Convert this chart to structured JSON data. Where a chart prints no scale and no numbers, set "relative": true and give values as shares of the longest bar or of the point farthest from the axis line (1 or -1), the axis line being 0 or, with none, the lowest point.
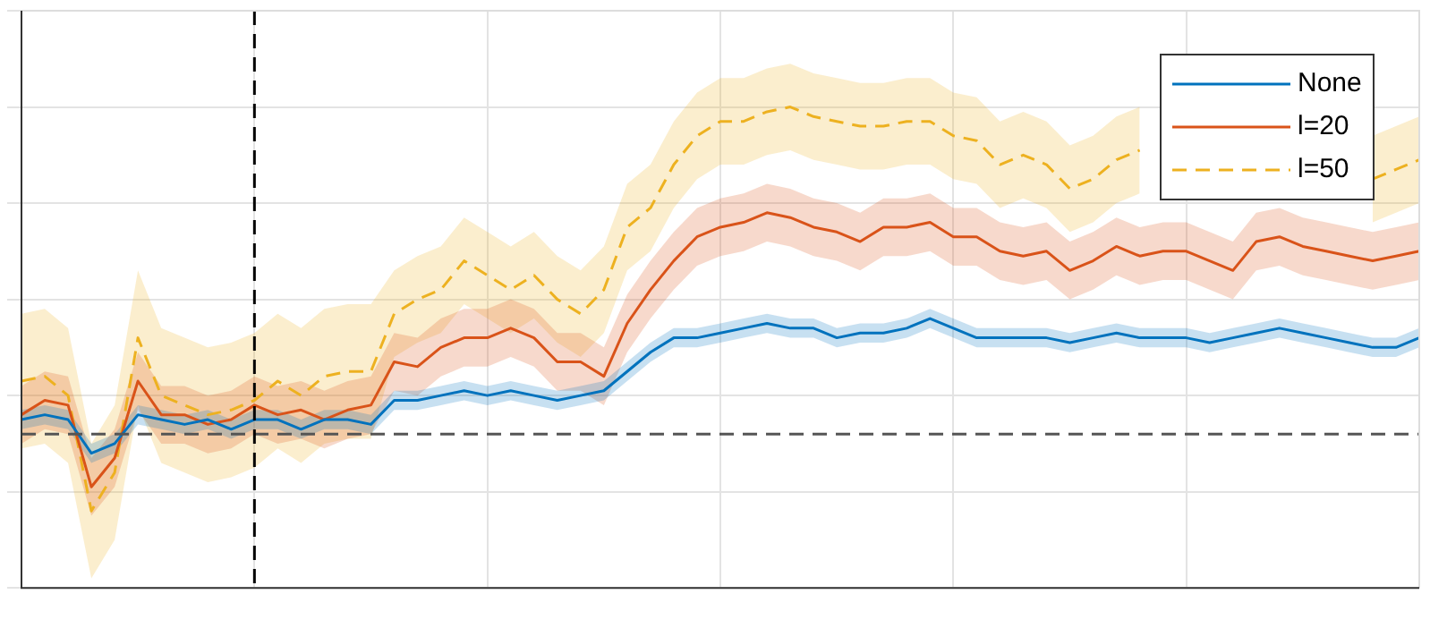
{
  "chart_data": {
    "type": "line",
    "relative": true,
    "grid": true,
    "legend": "top right",
    "marker": "none",
    "categories": [
      null,
      null,
      null,
      null,
      null,
      null,
      null,
      null,
      null,
      null,
      null,
      null,
      null,
      null,
      null,
      null,
      null,
      null,
      null,
      null,
      null,
      null,
      null,
      null,
      null,
      null,
      null,
      null,
      null,
      null,
      null,
      null,
      null,
      null,
      null,
      null,
      null,
      null,
      null,
      null,
      null,
      null,
      null,
      null,
      null,
      null,
      null,
      null,
      null,
      null,
      null,
      null,
      null,
      null,
      null,
      null,
      null,
      null,
      null,
      null,
      null
    ],
    "series": [
      {
        "name": "None",
        "color": "#0072bd",
        "line_style": "solid",
        "values": [
          0.35,
          0.36,
          0.35,
          0.28,
          0.3,
          0.36,
          0.35,
          0.34,
          0.35,
          0.33,
          0.35,
          0.35,
          0.33,
          0.35,
          0.35,
          0.34,
          0.39,
          0.39,
          0.4,
          0.41,
          0.4,
          0.41,
          0.4,
          0.39,
          0.4,
          0.41,
          0.45,
          0.49,
          0.52,
          0.52,
          0.53,
          0.54,
          0.55,
          0.54,
          0.54,
          0.52,
          0.53,
          0.53,
          0.54,
          0.56,
          0.54,
          0.52,
          0.52,
          0.52,
          0.52,
          0.51,
          0.52,
          0.53,
          0.52,
          0.52,
          0.52,
          0.51,
          0.52,
          0.53,
          0.54,
          0.53,
          0.52,
          0.51,
          0.5,
          0.5,
          0.52
        ],
        "lower": [
          0.33,
          0.34,
          0.33,
          0.26,
          0.28,
          0.34,
          0.33,
          0.32,
          0.33,
          0.31,
          0.33,
          0.33,
          0.31,
          0.33,
          0.33,
          0.32,
          0.37,
          0.37,
          0.38,
          0.39,
          0.38,
          0.39,
          0.38,
          0.37,
          0.38,
          0.39,
          0.43,
          0.47,
          0.5,
          0.5,
          0.51,
          0.52,
          0.53,
          0.52,
          0.52,
          0.5,
          0.51,
          0.51,
          0.52,
          0.54,
          0.52,
          0.5,
          0.5,
          0.5,
          0.5,
          0.49,
          0.5,
          0.51,
          0.5,
          0.5,
          0.5,
          0.49,
          0.5,
          0.51,
          0.52,
          0.51,
          0.5,
          0.49,
          0.48,
          0.48,
          0.5
        ],
        "upper": [
          0.37,
          0.38,
          0.37,
          0.3,
          0.32,
          0.38,
          0.37,
          0.36,
          0.37,
          0.35,
          0.37,
          0.37,
          0.35,
          0.37,
          0.37,
          0.36,
          0.41,
          0.41,
          0.42,
          0.43,
          0.42,
          0.43,
          0.42,
          0.41,
          0.42,
          0.43,
          0.47,
          0.51,
          0.54,
          0.54,
          0.55,
          0.56,
          0.57,
          0.56,
          0.56,
          0.54,
          0.55,
          0.55,
          0.56,
          0.58,
          0.56,
          0.54,
          0.54,
          0.54,
          0.54,
          0.53,
          0.54,
          0.55,
          0.54,
          0.54,
          0.54,
          0.53,
          0.54,
          0.55,
          0.56,
          0.55,
          0.54,
          0.53,
          0.52,
          0.52,
          0.54
        ]
      },
      {
        "name": "l=20",
        "color": "#d95319",
        "line_style": "solid",
        "values": [
          0.36,
          0.39,
          0.38,
          0.21,
          0.27,
          0.43,
          0.36,
          0.36,
          0.34,
          0.35,
          0.38,
          0.36,
          0.37,
          0.35,
          0.37,
          0.38,
          0.47,
          0.46,
          0.5,
          0.52,
          0.52,
          0.54,
          0.52,
          0.47,
          0.47,
          0.44,
          0.55,
          0.62,
          0.68,
          0.73,
          0.75,
          0.76,
          0.78,
          0.77,
          0.75,
          0.74,
          0.72,
          0.75,
          0.75,
          0.76,
          0.73,
          0.73,
          0.7,
          0.69,
          0.7,
          0.66,
          0.68,
          0.71,
          0.69,
          0.7,
          0.7,
          0.68,
          0.66,
          0.72,
          0.73,
          0.71,
          0.7,
          0.69,
          0.68,
          0.69,
          0.7
        ],
        "lower": [
          0.3,
          0.33,
          0.32,
          0.15,
          0.21,
          0.37,
          0.3,
          0.3,
          0.28,
          0.29,
          0.32,
          0.3,
          0.31,
          0.29,
          0.31,
          0.32,
          0.41,
          0.4,
          0.44,
          0.46,
          0.46,
          0.48,
          0.46,
          0.41,
          0.41,
          0.38,
          0.49,
          0.56,
          0.62,
          0.67,
          0.69,
          0.7,
          0.72,
          0.71,
          0.69,
          0.68,
          0.66,
          0.69,
          0.69,
          0.7,
          0.67,
          0.67,
          0.64,
          0.63,
          0.64,
          0.6,
          0.62,
          0.65,
          0.63,
          0.64,
          0.64,
          0.62,
          0.6,
          0.66,
          0.67,
          0.65,
          0.64,
          0.63,
          0.62,
          0.63,
          0.64
        ],
        "upper": [
          0.42,
          0.45,
          0.44,
          0.27,
          0.33,
          0.49,
          0.42,
          0.42,
          0.4,
          0.41,
          0.44,
          0.42,
          0.43,
          0.41,
          0.43,
          0.44,
          0.53,
          0.52,
          0.56,
          0.58,
          0.58,
          0.6,
          0.58,
          0.53,
          0.53,
          0.5,
          0.61,
          0.68,
          0.74,
          0.79,
          0.81,
          0.82,
          0.84,
          0.83,
          0.81,
          0.8,
          0.78,
          0.81,
          0.81,
          0.82,
          0.79,
          0.79,
          0.76,
          0.75,
          0.76,
          0.72,
          0.74,
          0.77,
          0.75,
          0.76,
          0.76,
          0.74,
          0.72,
          0.78,
          0.79,
          0.77,
          0.76,
          0.75,
          0.74,
          0.75,
          0.76
        ]
      },
      {
        "name": "l=50",
        "color": "#edb120",
        "line_style": "dashed",
        "values": [
          0.43,
          0.44,
          0.4,
          0.16,
          0.24,
          0.52,
          0.4,
          0.38,
          0.36,
          0.37,
          0.39,
          0.43,
          0.4,
          0.44,
          0.45,
          0.45,
          0.57,
          0.6,
          0.62,
          0.68,
          0.65,
          0.62,
          0.65,
          0.6,
          0.57,
          0.62,
          0.75,
          0.79,
          0.88,
          0.94,
          0.97,
          0.97,
          0.99,
          1,
          0.98,
          0.97,
          0.96,
          0.96,
          0.97,
          0.97,
          0.94,
          0.93,
          0.88,
          0.9,
          0.88,
          0.83,
          0.85,
          0.89,
          0.91,
          null,
          null,
          null,
          null,
          null,
          null,
          null,
          null,
          null,
          0.85,
          0.87,
          0.89
        ],
        "lower": [
          0.29,
          0.3,
          0.26,
          0.02,
          0.1,
          0.38,
          0.26,
          0.24,
          0.22,
          0.23,
          0.25,
          0.29,
          0.26,
          0.3,
          0.31,
          0.31,
          0.48,
          0.51,
          0.53,
          0.59,
          0.56,
          0.53,
          0.56,
          0.51,
          0.48,
          0.53,
          0.66,
          0.7,
          0.79,
          0.85,
          0.88,
          0.88,
          0.9,
          0.91,
          0.89,
          0.88,
          0.87,
          0.87,
          0.88,
          0.88,
          0.85,
          0.84,
          0.79,
          0.81,
          0.79,
          0.74,
          0.76,
          0.8,
          0.82,
          null,
          null,
          null,
          null,
          null,
          null,
          null,
          null,
          null,
          0.76,
          0.78,
          0.8
        ],
        "upper": [
          0.57,
          0.58,
          0.54,
          0.3,
          0.38,
          0.66,
          0.54,
          0.52,
          0.5,
          0.51,
          0.53,
          0.57,
          0.54,
          0.58,
          0.59,
          0.59,
          0.66,
          0.69,
          0.71,
          0.77,
          0.74,
          0.71,
          0.74,
          0.69,
          0.66,
          0.71,
          0.84,
          0.88,
          0.97,
          1.03,
          1.06,
          1.06,
          1.08,
          1.09,
          1.07,
          1.06,
          1.05,
          1.05,
          1.06,
          1.06,
          1.03,
          1.02,
          0.97,
          0.99,
          0.97,
          0.92,
          0.94,
          0.98,
          1.0,
          null,
          null,
          null,
          null,
          null,
          null,
          null,
          null,
          null,
          0.94,
          0.96,
          0.98
        ]
      }
    ],
    "ref_lines": [
      {
        "axis": "y",
        "value": 0.32,
        "color": "#555555",
        "line_style": "dashed"
      }
    ]
  }
}
